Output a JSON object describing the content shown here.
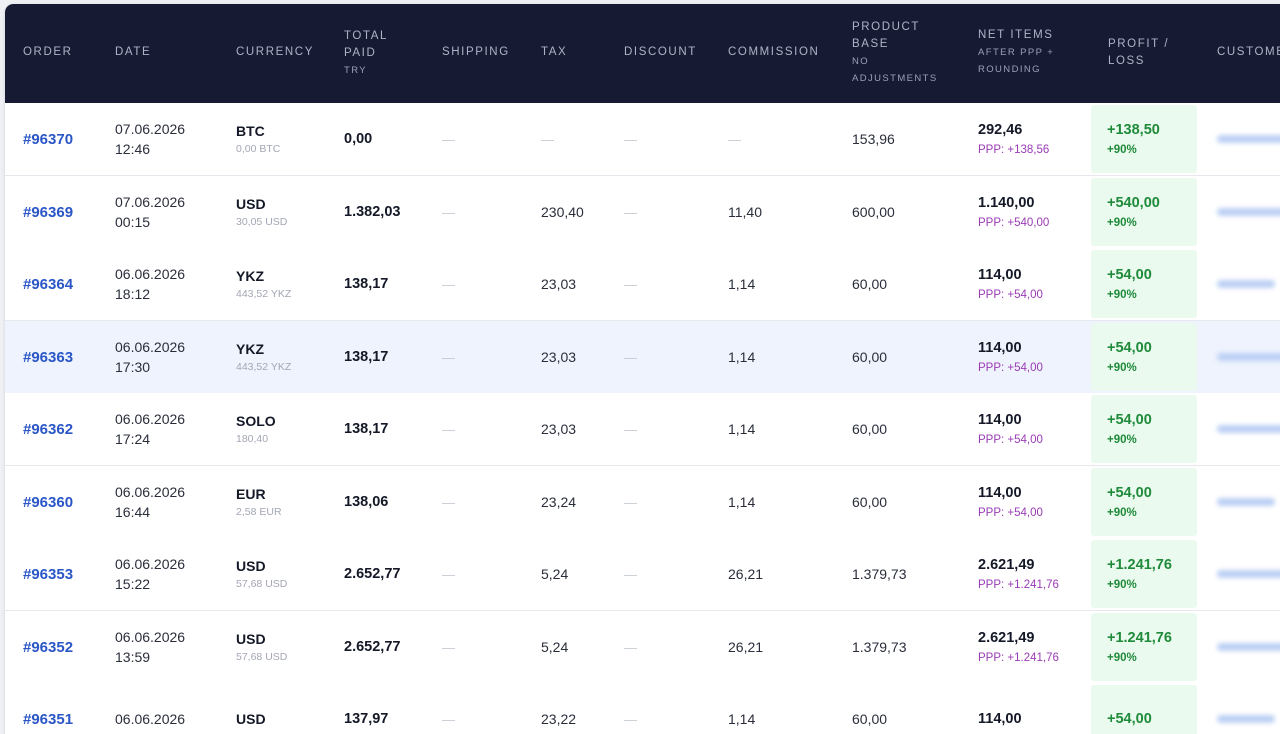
{
  "columns": {
    "order": "ORDER",
    "date": "DATE",
    "currency": "CURRENCY",
    "total_paid": "TOTAL PAID",
    "total_paid_sub": "TRY",
    "shipping": "SHIPPING",
    "tax": "TAX",
    "discount": "DISCOUNT",
    "commission": "COMMISSION",
    "product_base": "PRODUCT BASE",
    "product_base_sub": "NO ADJUSTMENTS",
    "net_items": "NET ITEMS",
    "net_items_sub": "AFTER PPP + ROUNDING",
    "profit_loss": "PROFIT / LOSS",
    "customer": "CUSTOME"
  },
  "rows": [
    {
      "order": "#96370",
      "date": "07.06.2026",
      "time": "12:46",
      "currency": "BTC",
      "currency_sub": "0,00 BTC",
      "total": "0,00",
      "shipping": "—",
      "tax": "—",
      "discount": "—",
      "commission": "—",
      "product_base": "153,96",
      "net_items": "292,46",
      "ppp": "PPP: +138,56",
      "profit": "+138,50",
      "profit_pct": "+90%"
    },
    {
      "order": "#96369",
      "date": "07.06.2026",
      "time": "00:15",
      "currency": "USD",
      "currency_sub": "30,05 USD",
      "total": "1.382,03",
      "shipping": "—",
      "tax": "230,40",
      "discount": "—",
      "commission": "11,40",
      "product_base": "600,00",
      "net_items": "1.140,00",
      "ppp": "PPP: +540,00",
      "profit": "+540,00",
      "profit_pct": "+90%"
    },
    {
      "order": "#96364",
      "date": "06.06.2026",
      "time": "18:12",
      "currency": "YKZ",
      "currency_sub": "443,52 YKZ",
      "total": "138,17",
      "shipping": "—",
      "tax": "23,03",
      "discount": "—",
      "commission": "1,14",
      "product_base": "60,00",
      "net_items": "114,00",
      "ppp": "PPP: +54,00",
      "profit": "+54,00",
      "profit_pct": "+90%"
    },
    {
      "order": "#96363",
      "date": "06.06.2026",
      "time": "17:30",
      "currency": "YKZ",
      "currency_sub": "443,52 YKZ",
      "total": "138,17",
      "shipping": "—",
      "tax": "23,03",
      "discount": "—",
      "commission": "1,14",
      "product_base": "60,00",
      "net_items": "114,00",
      "ppp": "PPP: +54,00",
      "profit": "+54,00",
      "profit_pct": "+90%"
    },
    {
      "order": "#96362",
      "date": "06.06.2026",
      "time": "17:24",
      "currency": "SOLO",
      "currency_sub": "180,40",
      "total": "138,17",
      "shipping": "—",
      "tax": "23,03",
      "discount": "—",
      "commission": "1,14",
      "product_base": "60,00",
      "net_items": "114,00",
      "ppp": "PPP: +54,00",
      "profit": "+54,00",
      "profit_pct": "+90%"
    },
    {
      "order": "#96360",
      "date": "06.06.2026",
      "time": "16:44",
      "currency": "EUR",
      "currency_sub": "2,58 EUR",
      "total": "138,06",
      "shipping": "—",
      "tax": "23,24",
      "discount": "—",
      "commission": "1,14",
      "product_base": "60,00",
      "net_items": "114,00",
      "ppp": "PPP: +54,00",
      "profit": "+54,00",
      "profit_pct": "+90%"
    },
    {
      "order": "#96353",
      "date": "06.06.2026",
      "time": "15:22",
      "currency": "USD",
      "currency_sub": "57,68 USD",
      "total": "2.652,77",
      "shipping": "—",
      "tax": "5,24",
      "discount": "—",
      "commission": "26,21",
      "product_base": "1.379,73",
      "net_items": "2.621,49",
      "ppp": "PPP: +1.241,76",
      "profit": "+1.241,76",
      "profit_pct": "+90%"
    },
    {
      "order": "#96352",
      "date": "06.06.2026",
      "time": "13:59",
      "currency": "USD",
      "currency_sub": "57,68 USD",
      "total": "2.652,77",
      "shipping": "—",
      "tax": "5,24",
      "discount": "—",
      "commission": "26,21",
      "product_base": "1.379,73",
      "net_items": "2.621,49",
      "ppp": "PPP: +1.241,76",
      "profit": "+1.241,76",
      "profit_pct": "+90%"
    },
    {
      "order": "#96351",
      "date": "06.06.2026",
      "time": "",
      "currency": "USD",
      "currency_sub": "",
      "total": "137,97",
      "shipping": "—",
      "tax": "23,22",
      "discount": "—",
      "commission": "1,14",
      "product_base": "60,00",
      "net_items": "114,00",
      "ppp": "",
      "profit": "+54,00",
      "profit_pct": ""
    }
  ],
  "colors": {
    "header_bg": "#161b33",
    "order_link": "#2a56c6",
    "ppp": "#9a3bb5",
    "profit": "#1f8a3a",
    "profit_bg": "#eafaee",
    "highlight_row": "#eef3fd"
  }
}
